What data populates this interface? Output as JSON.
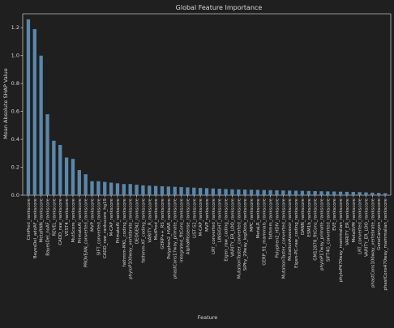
{
  "chart_data": {
    "type": "bar",
    "title": "Global Feature Importance",
    "xlabel": "Feature",
    "ylabel": "Mean Absolute SHAP Value",
    "ylim": [
      0,
      1.3
    ],
    "yticks": [
      "0.0",
      "0.2",
      "0.4",
      "0.6",
      "0.8",
      "1.0",
      "1.2"
    ],
    "grid": false,
    "categories": [
      "ClinPred_rankscore",
      "BayesDel_addAF_rankscore",
      "MetaRNN_rankscore",
      "BayesDel_noAF_rankscore",
      "REVEL_rankscore",
      "CADD_raw_rankscore",
      "VEST4_rankscore",
      "MutScore_rankscore",
      "PrimateAI_rankscore",
      "PROVEAN_converted_rankscore",
      "MVP_rankscore",
      "SIFT_converted_rankscore",
      "CADD_raw_rankscore_hg19",
      "M-CAP_rankscore",
      "PrimateAI_rankscore",
      "fathmm-MKL_coding_rankscore",
      "phyloP100way_vertebrate_rankscore",
      "DEOGEN2_rankscore",
      "fathmm-XF_coding_rankscore",
      "VARITY_R_rankscore",
      "MutPred_rankscore",
      "GERP++_RS_rankscore",
      "Polyphen2_HVAR_rankscore",
      "phastCons17way_primate_rankscore",
      "integrated_fitCons_rankscore",
      "AlphaMissense_rankscore",
      "LIST-S2_rankscore",
      "M-CAP_rankscore",
      "MVP_rankscore",
      "LRT_converted_rankscore",
      "LINSIGHT_rankscore",
      "Eigen_raw_coding_rankscore",
      "VARITY_ER_LOO_rankscore",
      "MutationTaster_converted_rankscore",
      "SiPhy_29way_logOdds_rankscore",
      "MPC_rankscore",
      "MetaLR_rankscore",
      "GERP_91_mammals_rankscore",
      "fathmm_rankscore",
      "Polyphen2_HDIV_rankscore",
      "MutationTaster_converted_rankscore",
      "MutationAssessor_rankscore",
      "Eigen-PC-raw_coding_rankscore",
      "DANN_rankscore",
      "ESM1b_rankscore",
      "GM12878_fitCons_rankscore",
      "phyloP17way_primate_rankscore",
      "SIFT4G_converted_rankscore",
      "EVE_rankscore",
      "phyloP470way_mammalian_rankscore",
      "VARITY_ER_rankscore",
      "MetaSVM_rankscore",
      "LRT_converted_rankscore",
      "VARITY_ER_LOO_rankscore",
      "phastCons100way_vertebrate_rankscore",
      "GenoCanyon_rankscore",
      "phastCons470way_mammalian_rankscore"
    ],
    "values": [
      1.26,
      1.19,
      1.0,
      0.58,
      0.39,
      0.36,
      0.27,
      0.26,
      0.18,
      0.15,
      0.1,
      0.1,
      0.095,
      0.09,
      0.085,
      0.08,
      0.08,
      0.075,
      0.07,
      0.068,
      0.066,
      0.064,
      0.062,
      0.06,
      0.058,
      0.056,
      0.054,
      0.052,
      0.05,
      0.048,
      0.046,
      0.044,
      0.042,
      0.041,
      0.04,
      0.039,
      0.038,
      0.037,
      0.036,
      0.035,
      0.034,
      0.033,
      0.032,
      0.031,
      0.03,
      0.029,
      0.028,
      0.027,
      0.026,
      0.025,
      0.024,
      0.023,
      0.022,
      0.02,
      0.018,
      0.016,
      0.014
    ]
  },
  "colors": {
    "background": "#1f1f1f",
    "bar": "#5b87ab",
    "axis": "#bdbdbd",
    "text": "#d6d6d6"
  }
}
